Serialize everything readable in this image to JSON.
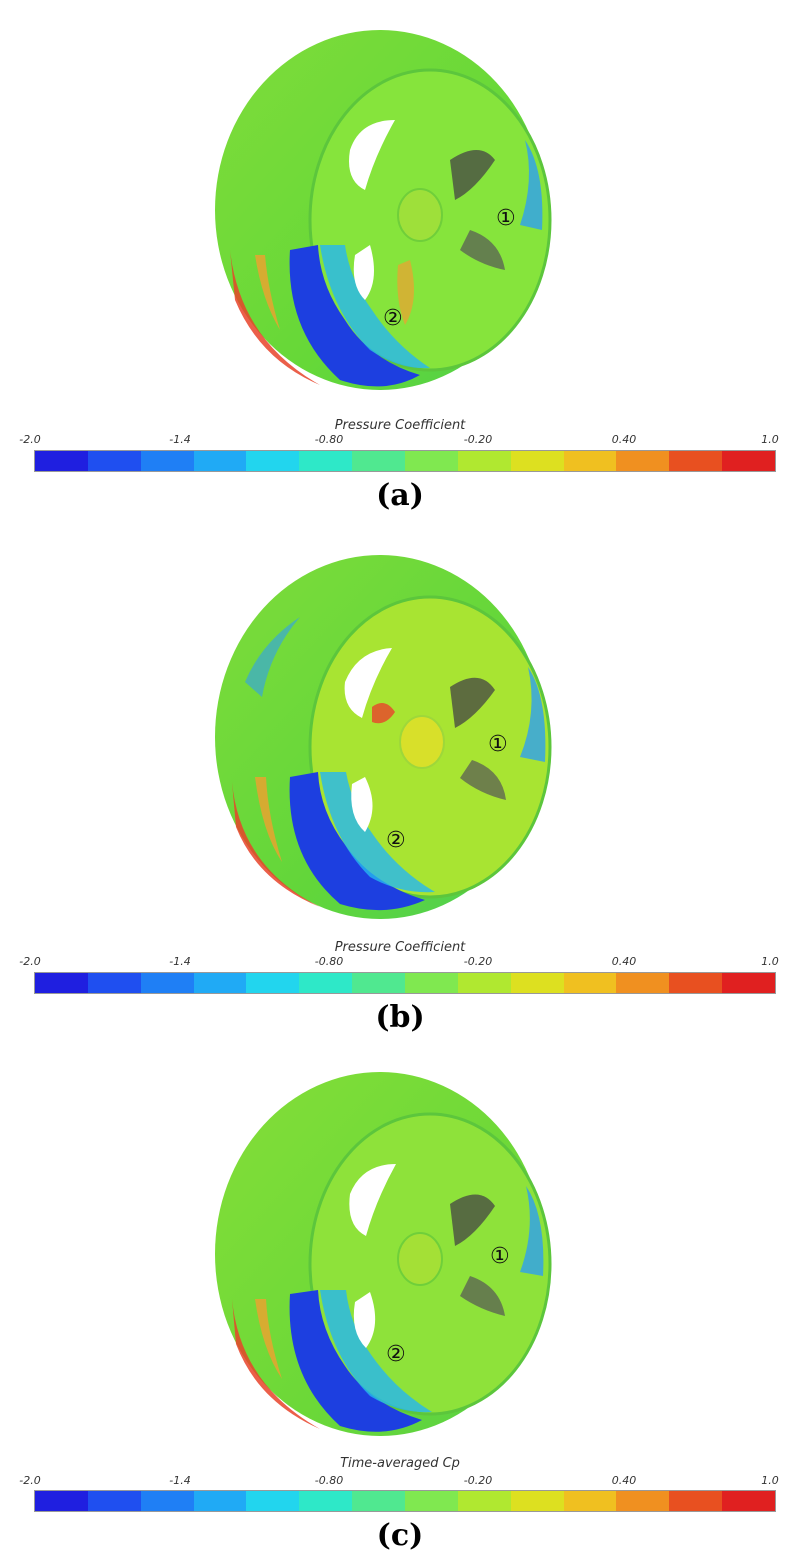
{
  "panels": [
    {
      "id": "a",
      "colorbar_title": "Pressure Coefficient",
      "caption": "(a)",
      "markers": [
        "①",
        "②"
      ]
    },
    {
      "id": "b",
      "colorbar_title": "Pressure Coefficient",
      "caption": "(b)",
      "markers": [
        "①",
        "②"
      ]
    },
    {
      "id": "c",
      "colorbar_title": "Time-averaged Cp",
      "caption": "(c)",
      "markers": [
        "①",
        "②"
      ]
    }
  ],
  "colorbar": {
    "ticks": [
      "-2.0",
      "-1.4",
      "-0.80",
      "-0.20",
      "0.40",
      "1.0"
    ],
    "range": [
      -2.0,
      1.0
    ],
    "colors": [
      "#1f1fe0",
      "#1f4ff0",
      "#1f7ff5",
      "#20aaf5",
      "#22d5ee",
      "#2ee8c8",
      "#50e890",
      "#80e850",
      "#b0e830",
      "#dde020",
      "#f0c020",
      "#f09020",
      "#e85020",
      "#e02020"
    ]
  }
}
